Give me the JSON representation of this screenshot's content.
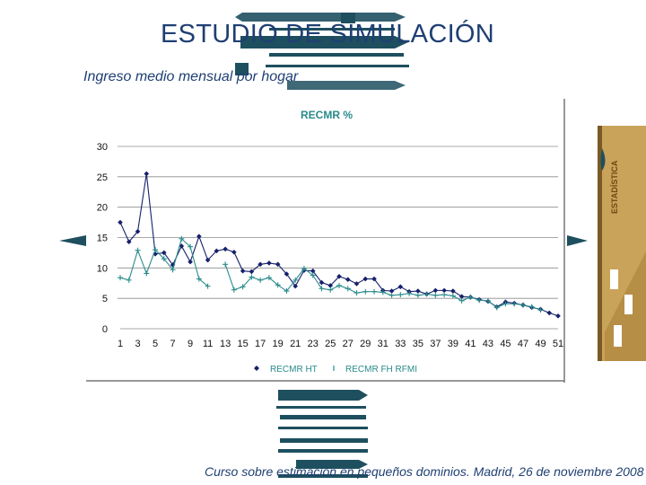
{
  "slide": {
    "title": "ESTUDIO DE SIMULACIÓN",
    "subtitle": "Ingreso medio mensual por hogar",
    "footer": "Curso sobre estimación en pequeños dominios. Madrid, 26 de noviembre 2008"
  },
  "colors": {
    "title": "#1f3f73",
    "decoration": "#1e4f5f",
    "series1": "#16206b",
    "series2": "#2c8c8c",
    "chart_title": "#2a8a8a",
    "logo": "#c9a35a"
  },
  "logo": {
    "text": "ESTADÍSTICA"
  },
  "chart_data": {
    "type": "line",
    "title": "RECMR %",
    "xlabel": "",
    "ylabel": "",
    "xlim": [
      1,
      51
    ],
    "ylim": [
      0,
      30
    ],
    "yticks": [
      0,
      5,
      10,
      15,
      20,
      25,
      30
    ],
    "xticks": [
      1,
      3,
      5,
      7,
      9,
      11,
      13,
      15,
      17,
      19,
      21,
      23,
      25,
      27,
      29,
      31,
      33,
      35,
      37,
      39,
      41,
      43,
      45,
      47,
      49,
      51
    ],
    "grid": "horizontal",
    "legend": "bottom",
    "x": [
      1,
      2,
      3,
      4,
      5,
      6,
      7,
      8,
      9,
      10,
      11,
      12,
      13,
      14,
      15,
      16,
      17,
      18,
      19,
      20,
      21,
      22,
      23,
      24,
      25,
      26,
      27,
      28,
      29,
      30,
      31,
      32,
      33,
      34,
      35,
      36,
      37,
      38,
      39,
      40,
      41,
      42,
      43,
      44,
      45,
      46,
      47,
      48,
      49,
      50,
      51
    ],
    "series": [
      {
        "name": "RECMR HT",
        "values": [
          17.5,
          14.3,
          16,
          25.5,
          12.3,
          12.5,
          10.5,
          13.6,
          11,
          15.2,
          11.3,
          12.8,
          13.1,
          12.6,
          9.5,
          9.4,
          10.6,
          10.8,
          10.6,
          9,
          7,
          9.6,
          9.5,
          7.6,
          7.1,
          8.6,
          8.1,
          7.4,
          8.2,
          8.2,
          6.3,
          6.2,
          6.9,
          6.1,
          6.2,
          5.7,
          6.3,
          6.3,
          6.2,
          5.3,
          5.2,
          4.8,
          4.5,
          3.6,
          4.4,
          4.2,
          3.9,
          3.5,
          3.2,
          2.6,
          2.1
        ]
      },
      {
        "name": "RECMR FH RFMI",
        "values": [
          8.4,
          8,
          12.9,
          9.1,
          13,
          11.5,
          9.7,
          14.8,
          13.5,
          8.2,
          7,
          null,
          10.6,
          6.4,
          6.9,
          8.5,
          8,
          8.4,
          7.2,
          6.2,
          8,
          9.9,
          8.8,
          6.6,
          6.4,
          7.1,
          6.6,
          5.9,
          6.1,
          6.1,
          6,
          5.5,
          5.6,
          5.8,
          5.5,
          5.7,
          5.5,
          5.6,
          5.4,
          4.6,
          5.2,
          4.7,
          4.6,
          3.5,
          4.1,
          4.1,
          3.9,
          3.6,
          3.1,
          null,
          null
        ]
      }
    ]
  }
}
